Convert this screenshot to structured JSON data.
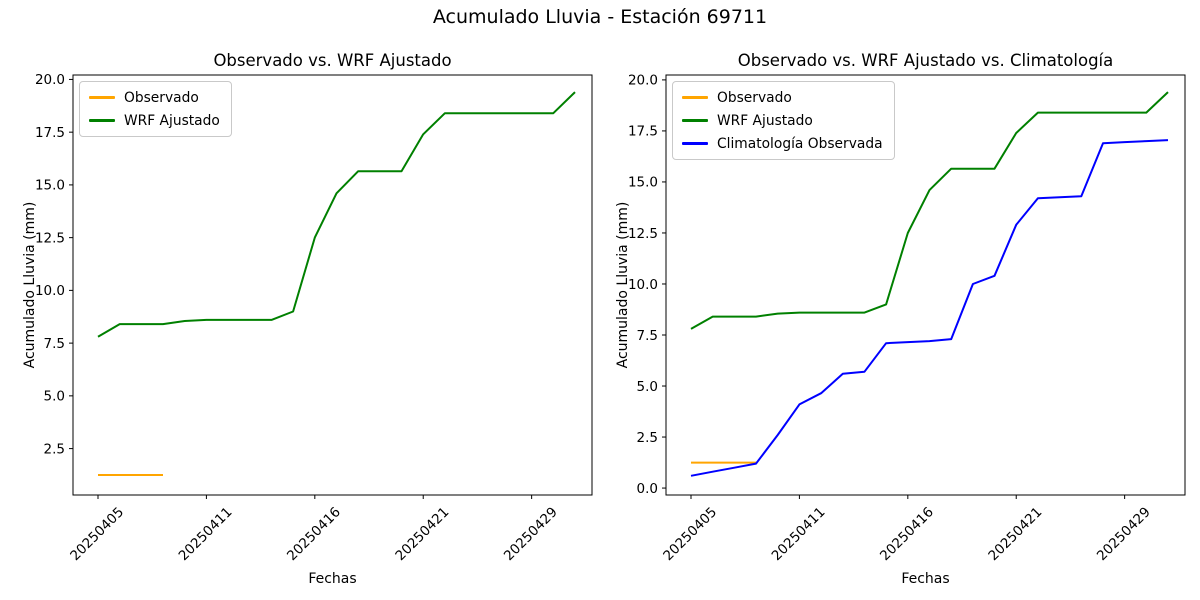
{
  "figure": {
    "title": "Acumulado Lluvia - Estación 69711",
    "background_color": "#ffffff",
    "text_color": "#000000"
  },
  "chart_data": [
    {
      "id": "left-chart",
      "type": "line",
      "title": "Observado vs. WRF Ajustado",
      "xlabel": "Fechas",
      "ylabel": "Acumulado Lluvia (mm)",
      "grid": false,
      "legend_position": "upper-left",
      "x_point_count": 23,
      "ylim": [
        0.3,
        20.21
      ],
      "xticks": [
        {
          "index": 0,
          "label": "20250405"
        },
        {
          "index": 5,
          "label": "20250411"
        },
        {
          "index": 10,
          "label": "20250416"
        },
        {
          "index": 15,
          "label": "20250421"
        },
        {
          "index": 20,
          "label": "20250429"
        }
      ],
      "yticks": [
        {
          "value": 2.5,
          "label": "2.5"
        },
        {
          "value": 5.0,
          "label": "5.0"
        },
        {
          "value": 7.5,
          "label": "7.5"
        },
        {
          "value": 10.0,
          "label": "10.0"
        },
        {
          "value": 12.5,
          "label": "12.5"
        },
        {
          "value": 15.0,
          "label": "15.0"
        },
        {
          "value": 17.5,
          "label": "17.5"
        },
        {
          "value": 20.0,
          "label": "20.0"
        }
      ],
      "series": [
        {
          "name": "Observado",
          "color": "#FFA500",
          "values": [
            1.25,
            1.25,
            1.25,
            1.25
          ]
        },
        {
          "name": "WRF Ajustado",
          "color": "#008000",
          "values": [
            7.8,
            8.4,
            8.4,
            8.4,
            8.55,
            8.6,
            8.6,
            8.6,
            8.6,
            9.0,
            12.5,
            14.6,
            15.65,
            15.65,
            15.65,
            17.4,
            18.4,
            18.4,
            18.4,
            18.4,
            18.4,
            18.4,
            19.4
          ]
        }
      ]
    },
    {
      "id": "right-chart",
      "type": "line",
      "title": "Observado vs. WRF Ajustado vs. Climatología",
      "xlabel": "Fechas",
      "ylabel": "Acumulado Lluvia (mm)",
      "grid": false,
      "legend_position": "upper-left",
      "x_point_count": 23,
      "ylim": [
        -0.34,
        20.24
      ],
      "xticks": [
        {
          "index": 0,
          "label": "20250405"
        },
        {
          "index": 5,
          "label": "20250411"
        },
        {
          "index": 10,
          "label": "20250416"
        },
        {
          "index": 15,
          "label": "20250421"
        },
        {
          "index": 20,
          "label": "20250429"
        }
      ],
      "yticks": [
        {
          "value": 0.0,
          "label": "0.0"
        },
        {
          "value": 2.5,
          "label": "2.5"
        },
        {
          "value": 5.0,
          "label": "5.0"
        },
        {
          "value": 7.5,
          "label": "7.5"
        },
        {
          "value": 10.0,
          "label": "10.0"
        },
        {
          "value": 12.5,
          "label": "12.5"
        },
        {
          "value": 15.0,
          "label": "15.0"
        },
        {
          "value": 17.5,
          "label": "17.5"
        },
        {
          "value": 20.0,
          "label": "20.0"
        }
      ],
      "series": [
        {
          "name": "Observado",
          "color": "#FFA500",
          "values": [
            1.25,
            1.25,
            1.25,
            1.25
          ]
        },
        {
          "name": "WRF Ajustado",
          "color": "#008000",
          "values": [
            7.8,
            8.4,
            8.4,
            8.4,
            8.55,
            8.6,
            8.6,
            8.6,
            8.6,
            9.0,
            12.5,
            14.6,
            15.65,
            15.65,
            15.65,
            17.4,
            18.4,
            18.4,
            18.4,
            18.4,
            18.4,
            18.4,
            19.4
          ]
        },
        {
          "name": "Climatología Observada",
          "color": "#0000FF",
          "values": [
            0.6,
            0.8,
            1.0,
            1.2,
            2.6,
            4.1,
            4.65,
            5.6,
            5.7,
            7.1,
            7.15,
            7.2,
            7.3,
            10.0,
            10.4,
            12.9,
            14.2,
            14.25,
            14.3,
            16.9,
            16.95,
            17.0,
            17.05
          ]
        }
      ]
    }
  ]
}
